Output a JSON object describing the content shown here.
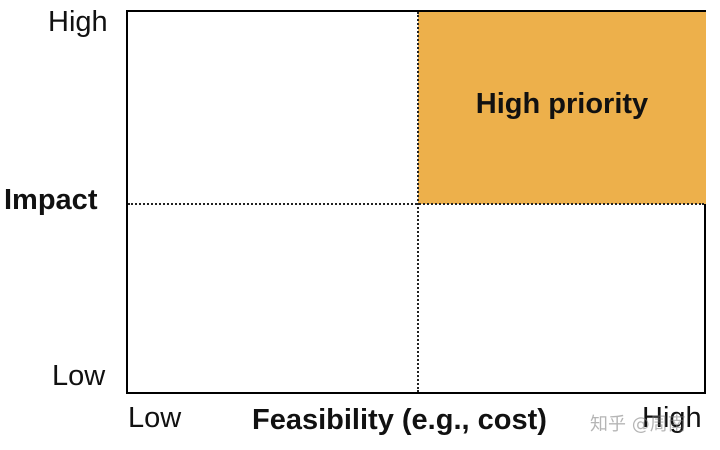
{
  "y_axis": {
    "title": "Impact",
    "high_label": "High",
    "low_label": "Low"
  },
  "x_axis": {
    "title": "Feasibility (e.g., cost)",
    "low_label": "Low",
    "high_label": "High"
  },
  "quadrants": {
    "high_high": {
      "label": "High priority",
      "color": "#EDB04B"
    }
  },
  "watermark": "知乎 @周南"
}
